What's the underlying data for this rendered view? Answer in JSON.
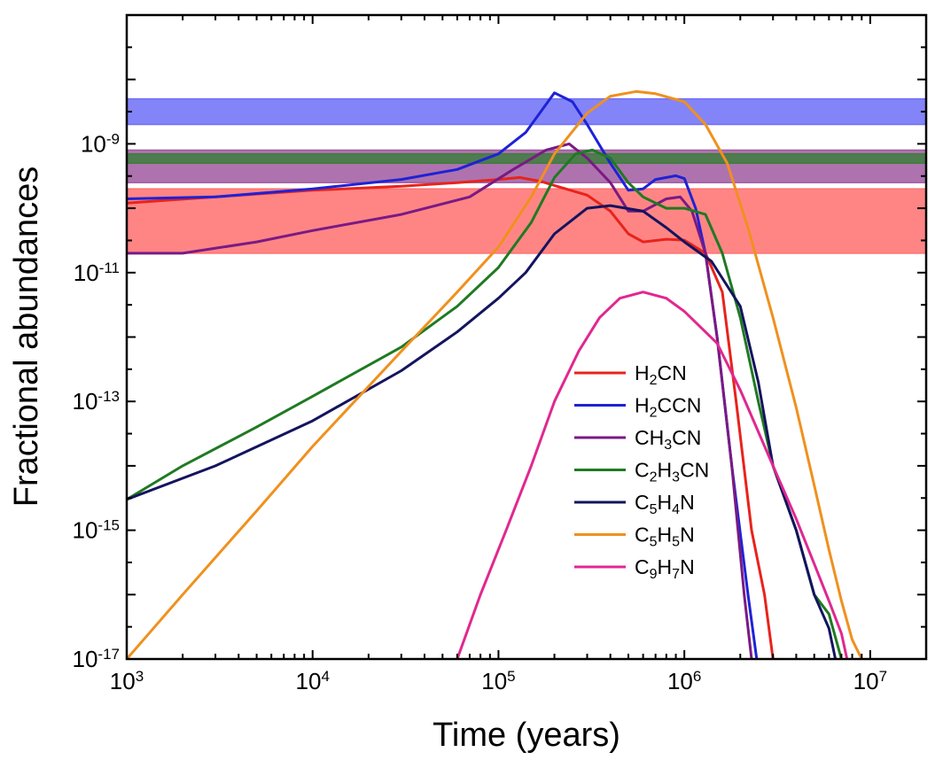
{
  "chart_data": {
    "type": "line",
    "title": "",
    "xlabel": "Time (years)",
    "ylabel": "Fractional abundances",
    "x_scale": "log",
    "y_scale": "log",
    "xlim": [
      1000,
      20000000
    ],
    "ylim": [
      1e-17,
      1e-07
    ],
    "x_ticks": [
      {
        "value": 1000,
        "base": "10",
        "exp": "3"
      },
      {
        "value": 10000,
        "base": "10",
        "exp": "4"
      },
      {
        "value": 100000,
        "base": "10",
        "exp": "5"
      },
      {
        "value": 1000000,
        "base": "10",
        "exp": "6"
      },
      {
        "value": 10000000,
        "base": "10",
        "exp": "7"
      }
    ],
    "y_ticks": [
      {
        "value": 1e-17,
        "base": "10",
        "exp": "-17"
      },
      {
        "value": 1e-15,
        "base": "10",
        "exp": "-15"
      },
      {
        "value": 1e-13,
        "base": "10",
        "exp": "-13"
      },
      {
        "value": 1e-11,
        "base": "10",
        "exp": "-11"
      },
      {
        "value": 1e-09,
        "base": "10",
        "exp": "-9"
      }
    ],
    "grid": false,
    "legend_position": "lower-right",
    "bands": [
      {
        "color": "#6f6ff8",
        "range": [
          2e-09,
          5e-09
        ]
      },
      {
        "color": "#a05aa0",
        "range": [
          2.5e-10,
          8e-10
        ]
      },
      {
        "color": "#3e7e3e",
        "range": [
          5e-10,
          7e-10
        ]
      },
      {
        "color": "#ff7070",
        "range": [
          2e-11,
          2e-10
        ]
      }
    ],
    "series": [
      {
        "name": [
          {
            "t": "H"
          },
          {
            "t": "2",
            "sub": true
          },
          {
            "t": "CN"
          }
        ],
        "color": "#e8231c",
        "points": [
          [
            1000,
            1.2e-10
          ],
          [
            3000,
            1.5e-10
          ],
          [
            10000,
            1.9e-10
          ],
          [
            30000,
            2.2e-10
          ],
          [
            60000,
            2.5e-10
          ],
          [
            100000,
            2.8e-10
          ],
          [
            130000,
            3e-10
          ],
          [
            170000,
            2.6e-10
          ],
          [
            230000,
            2e-10
          ],
          [
            300000,
            1.6e-10
          ],
          [
            400000,
            9e-11
          ],
          [
            500000,
            4e-11
          ],
          [
            600000,
            3e-11
          ],
          [
            800000,
            3.3e-11
          ],
          [
            1000000,
            3.2e-11
          ],
          [
            1300000,
            2e-11
          ],
          [
            1600000,
            5e-12
          ],
          [
            1900000,
            1e-13
          ],
          [
            2300000,
            1e-15
          ],
          [
            2700000,
            1e-16
          ],
          [
            3000000,
            1e-17
          ]
        ]
      },
      {
        "name": [
          {
            "t": "H"
          },
          {
            "t": "2",
            "sub": true
          },
          {
            "t": "CCN"
          }
        ],
        "color": "#1e22d6",
        "points": [
          [
            1000,
            1.4e-10
          ],
          [
            3000,
            1.5e-10
          ],
          [
            10000,
            2e-10
          ],
          [
            30000,
            2.8e-10
          ],
          [
            60000,
            4e-10
          ],
          [
            100000,
            7e-10
          ],
          [
            140000,
            1.5e-09
          ],
          [
            200000,
            6.2e-09
          ],
          [
            250000,
            4.5e-09
          ],
          [
            300000,
            2e-09
          ],
          [
            400000,
            5e-10
          ],
          [
            500000,
            1.9e-10
          ],
          [
            600000,
            2e-10
          ],
          [
            700000,
            2.8e-10
          ],
          [
            900000,
            3.2e-10
          ],
          [
            1000000,
            2.9e-10
          ],
          [
            1150000,
            1e-10
          ],
          [
            1300000,
            2e-11
          ],
          [
            1500000,
            1e-12
          ],
          [
            1800000,
            1e-14
          ],
          [
            2200000,
            1e-16
          ],
          [
            2450000,
            1e-17
          ]
        ]
      },
      {
        "name": [
          {
            "t": "CH"
          },
          {
            "t": "3",
            "sub": true
          },
          {
            "t": "CN"
          }
        ],
        "color": "#7a1a84",
        "points": [
          [
            1000,
            2e-11
          ],
          [
            2000,
            2e-11
          ],
          [
            5000,
            3e-11
          ],
          [
            10000,
            4.5e-11
          ],
          [
            30000,
            8e-11
          ],
          [
            70000,
            1.5e-10
          ],
          [
            120000,
            4e-10
          ],
          [
            180000,
            8e-10
          ],
          [
            240000,
            1e-09
          ],
          [
            300000,
            6e-10
          ],
          [
            400000,
            2.5e-10
          ],
          [
            500000,
            9e-11
          ],
          [
            600000,
            9e-11
          ],
          [
            800000,
            1.4e-10
          ],
          [
            950000,
            1.5e-10
          ],
          [
            1100000,
            9e-11
          ],
          [
            1300000,
            2e-11
          ],
          [
            1500000,
            1e-12
          ],
          [
            1800000,
            1e-14
          ],
          [
            2100000,
            1e-16
          ],
          [
            2300000,
            1e-17
          ]
        ]
      },
      {
        "name": [
          {
            "t": "C"
          },
          {
            "t": "2",
            "sub": true
          },
          {
            "t": "H"
          },
          {
            "t": "3",
            "sub": true
          },
          {
            "t": "CN"
          }
        ],
        "color": "#1f7a22",
        "points": [
          [
            1000,
            3e-15
          ],
          [
            2000,
            1e-14
          ],
          [
            5000,
            4e-14
          ],
          [
            10000,
            1.2e-13
          ],
          [
            30000,
            7e-13
          ],
          [
            60000,
            3e-12
          ],
          [
            100000,
            1.2e-11
          ],
          [
            150000,
            6e-11
          ],
          [
            200000,
            3e-10
          ],
          [
            260000,
            7e-10
          ],
          [
            320000,
            8e-10
          ],
          [
            400000,
            6e-10
          ],
          [
            500000,
            2.5e-10
          ],
          [
            600000,
            1.5e-10
          ],
          [
            800000,
            1e-10
          ],
          [
            1000000,
            1e-10
          ],
          [
            1300000,
            8e-11
          ],
          [
            1600000,
            2e-11
          ],
          [
            2000000,
            2e-12
          ],
          [
            2500000,
            1e-13
          ],
          [
            3000000,
            1e-14
          ],
          [
            4000000,
            1e-15
          ],
          [
            5000000,
            1e-16
          ],
          [
            6000000,
            5e-17
          ],
          [
            7000000,
            1e-17
          ]
        ]
      },
      {
        "name": [
          {
            "t": "C"
          },
          {
            "t": "5",
            "sub": true
          },
          {
            "t": "H"
          },
          {
            "t": "4",
            "sub": true
          },
          {
            "t": "N"
          }
        ],
        "color": "#14145e",
        "points": [
          [
            1000,
            3e-15
          ],
          [
            3000,
            1e-14
          ],
          [
            10000,
            5e-14
          ],
          [
            30000,
            3e-13
          ],
          [
            60000,
            1.2e-12
          ],
          [
            100000,
            4e-12
          ],
          [
            140000,
            1e-11
          ],
          [
            200000,
            4e-11
          ],
          [
            300000,
            1e-10
          ],
          [
            400000,
            1.1e-10
          ],
          [
            600000,
            9e-11
          ],
          [
            800000,
            5e-11
          ],
          [
            1000000,
            3e-11
          ],
          [
            1400000,
            1.5e-11
          ],
          [
            2000000,
            3e-12
          ],
          [
            2500000,
            2e-13
          ],
          [
            3000000,
            1e-14
          ],
          [
            4000000,
            1e-15
          ],
          [
            5000000,
            1e-16
          ],
          [
            6000000,
            3e-17
          ],
          [
            6500000,
            1e-17
          ]
        ]
      },
      {
        "name": [
          {
            "t": "C"
          },
          {
            "t": "5",
            "sub": true
          },
          {
            "t": "H"
          },
          {
            "t": "5",
            "sub": true
          },
          {
            "t": "N"
          }
        ],
        "color": "#f0901e",
        "points": [
          [
            1000,
            1e-17
          ],
          [
            2000,
            1e-16
          ],
          [
            5000,
            2e-15
          ],
          [
            10000,
            2e-14
          ],
          [
            30000,
            6e-13
          ],
          [
            60000,
            5e-12
          ],
          [
            100000,
            2.5e-11
          ],
          [
            150000,
            1.5e-10
          ],
          [
            200000,
            7e-10
          ],
          [
            300000,
            3e-09
          ],
          [
            400000,
            5.5e-09
          ],
          [
            550000,
            6.5e-09
          ],
          [
            700000,
            6e-09
          ],
          [
            1000000,
            4.5e-09
          ],
          [
            1300000,
            2e-09
          ],
          [
            1700000,
            5e-10
          ],
          [
            2200000,
            5e-11
          ],
          [
            3000000,
            2e-12
          ],
          [
            4000000,
            8e-14
          ],
          [
            5000000,
            5e-15
          ],
          [
            6000000,
            5e-16
          ],
          [
            7000000,
            8e-17
          ],
          [
            8000000,
            2e-17
          ],
          [
            9000000,
            1e-17
          ]
        ]
      },
      {
        "name": [
          {
            "t": "C"
          },
          {
            "t": "9",
            "sub": true
          },
          {
            "t": "H"
          },
          {
            "t": "7",
            "sub": true
          },
          {
            "t": "N"
          }
        ],
        "color": "#e02890",
        "points": [
          [
            60000,
            1e-17
          ],
          [
            80000,
            1e-16
          ],
          [
            110000,
            1e-15
          ],
          [
            150000,
            1e-14
          ],
          [
            200000,
            1e-13
          ],
          [
            270000,
            6e-13
          ],
          [
            350000,
            2e-12
          ],
          [
            450000,
            4e-12
          ],
          [
            600000,
            5e-12
          ],
          [
            800000,
            4e-12
          ],
          [
            1000000,
            2.5e-12
          ],
          [
            1500000,
            8e-13
          ],
          [
            2000000,
            1.5e-13
          ],
          [
            3000000,
            1e-14
          ],
          [
            4000000,
            1.5e-15
          ],
          [
            5000000,
            3e-16
          ],
          [
            6000000,
            8e-17
          ],
          [
            7000000,
            2.5e-17
          ],
          [
            7500000,
            1e-17
          ]
        ]
      }
    ]
  }
}
